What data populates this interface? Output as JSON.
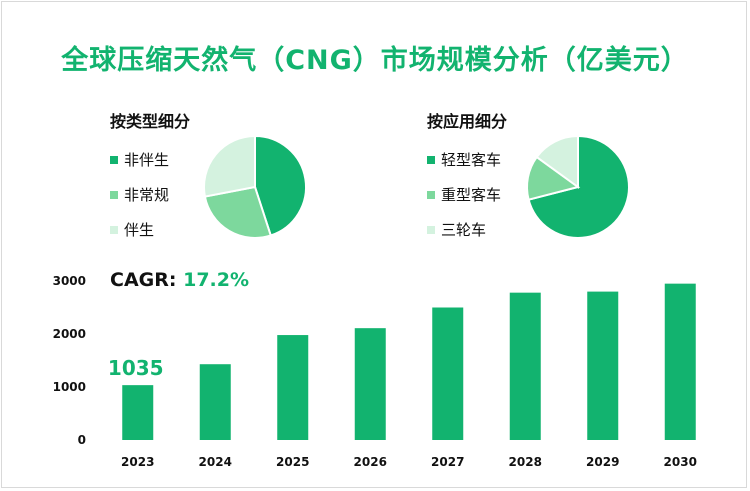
{
  "title": "全球压缩天然气（CNG）市场规模分析（亿美元）",
  "cagr": {
    "label": "CAGR:",
    "value": "17.2%"
  },
  "colors": {
    "accent": "#12b36f",
    "mid": "#7dd89d",
    "light": "#d4f2df"
  },
  "chart_data": [
    {
      "type": "pie",
      "title": "按类型细分",
      "slices": [
        {
          "label": "非伴生",
          "value": 45,
          "color": "#12b36f"
        },
        {
          "label": "非常规",
          "value": 27,
          "color": "#7dd89d"
        },
        {
          "label": "伴生",
          "value": 28,
          "color": "#d4f2df"
        }
      ]
    },
    {
      "type": "pie",
      "title": "按应用细分",
      "slices": [
        {
          "label": "轻型客车",
          "value": 71,
          "color": "#12b36f"
        },
        {
          "label": "重型客车",
          "value": 14,
          "color": "#7dd89d"
        },
        {
          "label": "三轮车",
          "value": 15,
          "color": "#d4f2df"
        }
      ]
    },
    {
      "type": "bar",
      "categories": [
        "2023",
        "2024",
        "2025",
        "2026",
        "2027",
        "2028",
        "2029",
        "2030"
      ],
      "values": [
        1035,
        1430,
        1980,
        2110,
        2500,
        2780,
        2800,
        2950
      ],
      "data_labels": {
        "2023": "1035"
      },
      "ylim": [
        0,
        3000
      ],
      "yticks": [
        "0",
        "1000",
        "2000",
        "3000"
      ],
      "color": "#12b36f"
    }
  ]
}
